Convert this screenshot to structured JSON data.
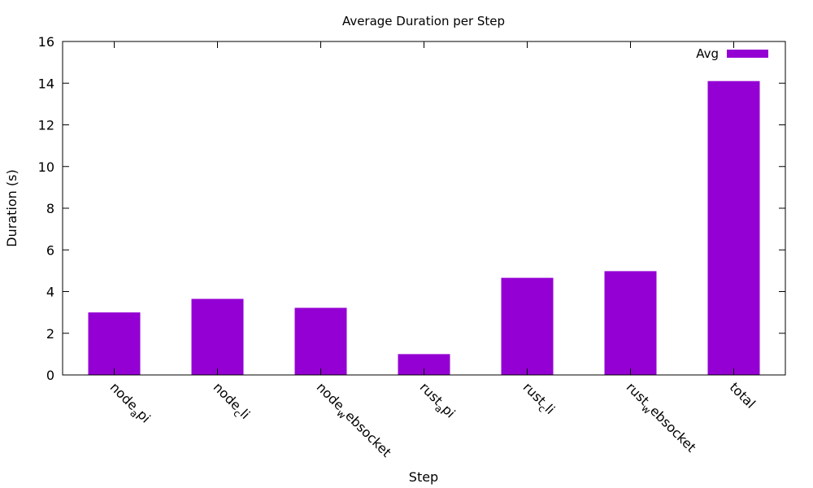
{
  "chart_data": {
    "type": "bar",
    "title": "Average Duration per Step",
    "xlabel": "Step",
    "ylabel": "Duration (s)",
    "ylim": [
      0,
      16
    ],
    "yticks": [
      0,
      2,
      4,
      6,
      8,
      10,
      12,
      14,
      16
    ],
    "grid": false,
    "legend_position": "top-right",
    "categories": [
      {
        "base": "node",
        "sub": "a",
        "rest": "pi"
      },
      {
        "base": "node",
        "sub": "c",
        "rest": "li"
      },
      {
        "base": "node",
        "sub": "w",
        "rest": "ebsocket"
      },
      {
        "base": "rust",
        "sub": "a",
        "rest": "pi"
      },
      {
        "base": "rust",
        "sub": "c",
        "rest": "li"
      },
      {
        "base": "rust",
        "sub": "w",
        "rest": "ebsocket"
      },
      {
        "base": "total",
        "sub": "",
        "rest": ""
      }
    ],
    "series": [
      {
        "name": "Avg",
        "color": "#9400d3",
        "values": [
          3.0,
          3.65,
          3.22,
          1.0,
          4.66,
          4.98,
          14.1
        ]
      }
    ]
  }
}
